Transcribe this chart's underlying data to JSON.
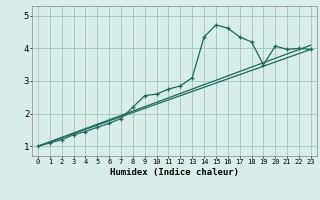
{
  "background_color": "#d8ecea",
  "grid_color": "#aac8c4",
  "line_color": "#1a6b5a",
  "xlabel": "Humidex (Indice chaleur)",
  "xlim": [
    -0.5,
    23.5
  ],
  "ylim": [
    0.7,
    5.3
  ],
  "yticks": [
    1,
    2,
    3,
    4,
    5
  ],
  "xticks": [
    0,
    1,
    2,
    3,
    4,
    5,
    6,
    7,
    8,
    9,
    10,
    11,
    12,
    13,
    14,
    15,
    16,
    17,
    18,
    19,
    20,
    21,
    22,
    23
  ],
  "series1_x": [
    0,
    1,
    2,
    3,
    4,
    5,
    6,
    7,
    8,
    9,
    10,
    11,
    12,
    13,
    14,
    15,
    16,
    17,
    18,
    19,
    20,
    21,
    22,
    23
  ],
  "series1_y": [
    1.0,
    1.1,
    1.2,
    1.35,
    1.45,
    1.58,
    1.7,
    1.85,
    2.2,
    2.55,
    2.6,
    2.75,
    2.85,
    3.1,
    4.35,
    4.72,
    4.62,
    4.35,
    4.2,
    3.5,
    4.07,
    3.97,
    4.0,
    3.97
  ],
  "series2_x": [
    0,
    23
  ],
  "series2_y": [
    1.0,
    4.1
  ],
  "series3_x": [
    0,
    23
  ],
  "series3_y": [
    1.0,
    3.97
  ],
  "xlabel_fontsize": 6.5,
  "xtick_fontsize": 5.0,
  "ytick_fontsize": 6.5
}
